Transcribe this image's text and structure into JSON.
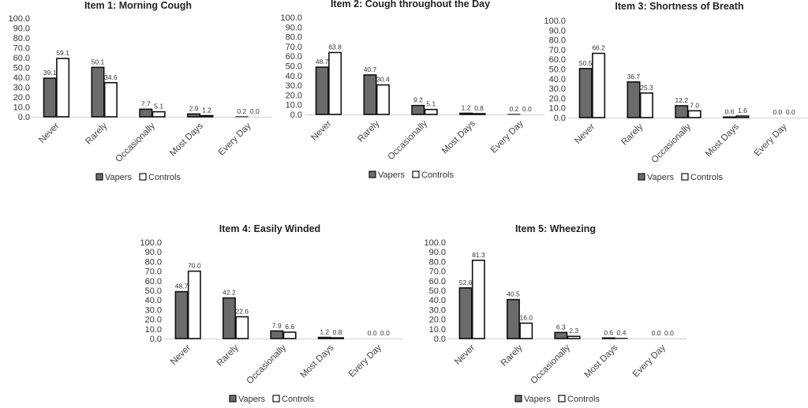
{
  "chart_data": [
    {
      "type": "bar",
      "title": "Item 1: Morning Cough",
      "categories": [
        "Never",
        "Rarely",
        "Occasionally",
        "Most Days",
        "Every Day"
      ],
      "series": [
        {
          "name": "Vapers",
          "values": [
            39.1,
            50.1,
            7.7,
            2.9,
            0.2
          ]
        },
        {
          "name": "Controls",
          "values": [
            59.1,
            34.6,
            5.1,
            1.2,
            0.0
          ]
        }
      ],
      "ylim": [
        0,
        100
      ],
      "yticks": [
        "0.0",
        "10.0",
        "20.0",
        "30.0",
        "40.0",
        "50.0",
        "60.0",
        "70.0",
        "80.0",
        "90.0",
        "100.0"
      ],
      "legend": "bottom",
      "grid": false
    },
    {
      "type": "bar",
      "title": "Item 2: Cough throughout the Day",
      "categories": [
        "Never",
        "Rarely",
        "Occasionally",
        "Most Days",
        "Every Day"
      ],
      "series": [
        {
          "name": "Vapers",
          "values": [
            48.7,
            40.7,
            9.2,
            1.2,
            0.2
          ]
        },
        {
          "name": "Controls",
          "values": [
            63.8,
            30.4,
            5.1,
            0.8,
            0.0
          ]
        }
      ],
      "ylim": [
        0,
        100
      ],
      "yticks": [
        "0.0",
        "10.0",
        "20.0",
        "30.0",
        "40.0",
        "50.0",
        "60.0",
        "70.0",
        "80.0",
        "90.0",
        "100.0"
      ],
      "legend": "bottom",
      "grid": false
    },
    {
      "type": "bar",
      "title": "Item 3: Shortness of Breath",
      "categories": [
        "Never",
        "Rarely",
        "Occasionally",
        "Most Days",
        "Every Day"
      ],
      "series": [
        {
          "name": "Vapers",
          "values": [
            50.5,
            36.7,
            12.2,
            0.6,
            0.0
          ]
        },
        {
          "name": "Controls",
          "values": [
            66.2,
            25.3,
            7.0,
            1.6,
            0.0
          ]
        }
      ],
      "ylim": [
        0,
        100
      ],
      "yticks": [
        "0.0",
        "10.0",
        "20.0",
        "30.0",
        "40.0",
        "50.0",
        "60.0",
        "70.0",
        "80.0",
        "90.0",
        "100.0"
      ],
      "legend": "bottom",
      "grid": false
    },
    {
      "type": "bar",
      "title": "Item 4: Easily Winded",
      "categories": [
        "Never",
        "Rarely",
        "Occasionally",
        "Most Days",
        "Every Day"
      ],
      "series": [
        {
          "name": "Vapers",
          "values": [
            48.7,
            42.2,
            7.9,
            1.2,
            0.0
          ]
        },
        {
          "name": "Controls",
          "values": [
            70.0,
            22.6,
            6.6,
            0.8,
            0.0
          ]
        }
      ],
      "ylim": [
        0,
        100
      ],
      "yticks": [
        "0.0",
        "10.0",
        "20.0",
        "30.0",
        "40.0",
        "50.0",
        "60.0",
        "70.0",
        "80.0",
        "90.0",
        "100.0"
      ],
      "legend": "bottom",
      "grid": false
    },
    {
      "type": "bar",
      "title": "Item 5: Wheezing",
      "categories": [
        "Never",
        "Rarely",
        "Occasionally",
        "Most Days",
        "Every Day"
      ],
      "series": [
        {
          "name": "Vapers",
          "values": [
            52.6,
            40.5,
            6.3,
            0.6,
            0.0
          ]
        },
        {
          "name": "Controls",
          "values": [
            81.3,
            16.0,
            2.3,
            0.4,
            0.0
          ]
        }
      ],
      "ylim": [
        0,
        100
      ],
      "yticks": [
        "0.0",
        "10.0",
        "20.0",
        "30.0",
        "40.0",
        "50.0",
        "60.0",
        "70.0",
        "80.0",
        "90.0",
        "100.0"
      ],
      "legend": "bottom",
      "grid": false
    }
  ],
  "colors": {
    "Vapers": "#6b6b6b",
    "Controls": "#ffffff",
    "outline": "#111111",
    "axis": "#d0d0d0"
  }
}
